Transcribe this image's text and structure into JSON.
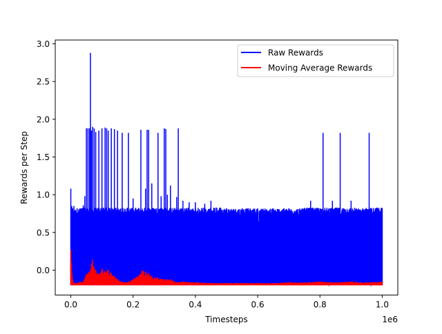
{
  "chart_data": {
    "type": "line",
    "title": "",
    "xlabel": "Timesteps",
    "ylabel": "Rewards per Step",
    "x_offset_label": "1e6",
    "xlim": [
      -0.05,
      1.05
    ],
    "ylim": [
      -0.33,
      3.05
    ],
    "x_ticks": [
      0.0,
      0.2,
      0.4,
      0.6,
      0.8,
      1.0
    ],
    "x_tick_labels": [
      "0.0",
      "0.2",
      "0.4",
      "0.6",
      "0.8",
      "1.0"
    ],
    "y_ticks": [
      0.0,
      0.5,
      1.0,
      1.5,
      2.0,
      2.5,
      3.0
    ],
    "y_tick_labels": [
      "0.0",
      "0.5",
      "1.0",
      "1.5",
      "2.0",
      "2.5",
      "3.0"
    ],
    "grid": false,
    "legend_position": "top-right",
    "series": [
      {
        "name": "Raw Rewards",
        "color": "#0000ff",
        "x": [
          0.0,
          0.003,
          0.006,
          0.01,
          0.014,
          0.02,
          0.03,
          0.04,
          0.045,
          0.05,
          0.055,
          0.06,
          0.063,
          0.066,
          0.07,
          0.075,
          0.08,
          0.09,
          0.1,
          0.11,
          0.115,
          0.12,
          0.13,
          0.14,
          0.15,
          0.165,
          0.185,
          0.2,
          0.225,
          0.24,
          0.245,
          0.25,
          0.26,
          0.28,
          0.29,
          0.3,
          0.305,
          0.31,
          0.32,
          0.34,
          0.345,
          0.36,
          0.38,
          0.4,
          0.43,
          0.45,
          0.48,
          0.5,
          0.55,
          0.6,
          0.65,
          0.7,
          0.75,
          0.77,
          0.8,
          0.81,
          0.83,
          0.84,
          0.865,
          0.9,
          0.958,
          1.0
        ],
        "high": [
          1.08,
          0.85,
          0.82,
          0.85,
          0.8,
          0.82,
          0.82,
          0.86,
          0.98,
          1.88,
          1.88,
          1.88,
          2.88,
          1.85,
          1.9,
          1.88,
          1.83,
          1.85,
          1.88,
          1.89,
          1.88,
          1.85,
          1.88,
          1.87,
          1.85,
          1.82,
          1.82,
          0.95,
          1.86,
          1.08,
          1.86,
          1.86,
          1.15,
          1.82,
          0.98,
          1.88,
          1.87,
          1.0,
          1.12,
          0.97,
          1.88,
          0.92,
          0.9,
          0.9,
          0.88,
          0.92,
          0.83,
          0.82,
          0.82,
          0.82,
          0.82,
          0.82,
          0.82,
          0.92,
          0.82,
          1.82,
          0.82,
          0.92,
          1.82,
          0.92,
          1.82,
          0.82
        ],
        "low": [
          -0.2,
          -0.2,
          -0.2,
          -0.2,
          -0.2,
          -0.2,
          -0.19,
          -0.2,
          -0.2,
          -0.2,
          -0.2,
          -0.2,
          -0.2,
          -0.2,
          -0.2,
          -0.2,
          -0.2,
          -0.2,
          -0.2,
          -0.2,
          -0.2,
          -0.2,
          -0.2,
          -0.2,
          -0.2,
          -0.2,
          -0.2,
          -0.2,
          -0.2,
          -0.2,
          -0.2,
          -0.2,
          -0.2,
          -0.2,
          -0.2,
          -0.2,
          -0.2,
          -0.2,
          -0.2,
          -0.2,
          -0.2,
          -0.2,
          -0.2,
          -0.2,
          -0.2,
          -0.2,
          -0.2,
          -0.2,
          -0.2,
          -0.2,
          -0.2,
          -0.2,
          -0.2,
          -0.2,
          -0.2,
          -0.2,
          -0.2,
          -0.2,
          -0.2,
          -0.2,
          -0.2,
          -0.2
        ]
      },
      {
        "name": "Moving Average Rewards",
        "color": "#ff0000",
        "x": [
          0.0,
          0.002,
          0.005,
          0.01,
          0.02,
          0.03,
          0.04,
          0.05,
          0.06,
          0.07,
          0.08,
          0.09,
          0.1,
          0.11,
          0.12,
          0.13,
          0.14,
          0.15,
          0.16,
          0.18,
          0.2,
          0.22,
          0.23,
          0.24,
          0.25,
          0.26,
          0.28,
          0.3,
          0.32,
          0.34,
          0.36,
          0.38,
          0.4,
          0.45,
          0.5,
          0.55,
          0.6,
          0.65,
          0.7,
          0.75,
          0.8,
          0.85,
          0.9,
          0.95,
          1.0
        ],
        "high": [
          0.27,
          0.1,
          -0.1,
          -0.17,
          -0.17,
          -0.15,
          -0.15,
          -0.05,
          -0.02,
          0.14,
          0.0,
          -0.05,
          0.02,
          -0.02,
          0.01,
          -0.04,
          -0.08,
          -0.12,
          -0.15,
          -0.16,
          -0.12,
          -0.06,
          0.0,
          -0.02,
          -0.04,
          -0.08,
          -0.1,
          -0.12,
          -0.12,
          -0.16,
          -0.15,
          -0.16,
          -0.16,
          -0.17,
          -0.17,
          -0.17,
          -0.17,
          -0.17,
          -0.16,
          -0.16,
          -0.15,
          -0.16,
          -0.15,
          -0.16,
          -0.15
        ],
        "low": [
          -0.2,
          -0.2,
          -0.2,
          -0.2,
          -0.2,
          -0.2,
          -0.2,
          -0.2,
          -0.2,
          -0.2,
          -0.2,
          -0.2,
          -0.2,
          -0.2,
          -0.2,
          -0.2,
          -0.2,
          -0.2,
          -0.2,
          -0.2,
          -0.2,
          -0.2,
          -0.2,
          -0.2,
          -0.2,
          -0.2,
          -0.2,
          -0.2,
          -0.2,
          -0.2,
          -0.2,
          -0.2,
          -0.2,
          -0.2,
          -0.2,
          -0.2,
          -0.2,
          -0.2,
          -0.2,
          -0.2,
          -0.2,
          -0.2,
          -0.2,
          -0.2,
          -0.2
        ]
      }
    ]
  }
}
